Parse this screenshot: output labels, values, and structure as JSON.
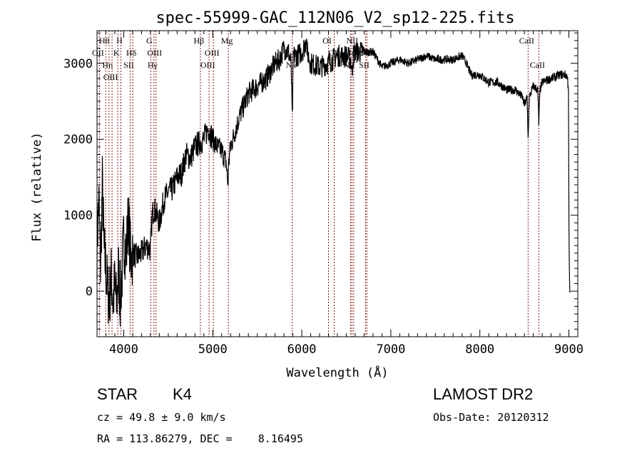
{
  "chart_data": {
    "type": "line",
    "title": "spec-55999-GAC_112N06_V2_sp12-225.fits",
    "xlabel": "Wavelength (Å)",
    "ylabel": "Flux (relative)",
    "xlim": [
      3700,
      9100
    ],
    "ylim": [
      -600,
      3430
    ],
    "x_ticks": [
      4000,
      5000,
      6000,
      7000,
      8000,
      9000
    ],
    "y_ticks": [
      0,
      1000,
      2000,
      3000
    ],
    "grid": false,
    "series": [
      {
        "name": "flux",
        "x": [
          3700,
          3720,
          3740,
          3760,
          3780,
          3800,
          3820,
          3840,
          3860,
          3880,
          3900,
          3920,
          3940,
          3960,
          3980,
          4000,
          4030,
          4050,
          4080,
          4100,
          4150,
          4200,
          4250,
          4300,
          4320,
          4340,
          4400,
          4450,
          4500,
          4550,
          4600,
          4650,
          4700,
          4750,
          4800,
          4850,
          4900,
          4950,
          5000,
          5050,
          5100,
          5150,
          5170,
          5180,
          5200,
          5250,
          5300,
          5350,
          5400,
          5450,
          5500,
          5600,
          5700,
          5750,
          5800,
          5850,
          5880,
          5893,
          5905,
          5950,
          6000,
          6040,
          6050,
          6060,
          6100,
          6200,
          6300,
          6400,
          6500,
          6550,
          6563,
          6575,
          6600,
          6700,
          6800,
          6850,
          6900,
          7000,
          7100,
          7200,
          7300,
          7400,
          7500,
          7600,
          7700,
          7800,
          7850,
          7900,
          8000,
          8100,
          8200,
          8300,
          8400,
          8480,
          8500,
          8530,
          8542,
          8555,
          8600,
          8650,
          8662,
          8675,
          8700,
          8800,
          8900,
          8970,
          8985,
          8995,
          9000,
          9005,
          9010
        ],
        "y": [
          600,
          1200,
          300,
          1400,
          500,
          300,
          0,
          -100,
          200,
          -150,
          100,
          -200,
          300,
          -100,
          200,
          700,
          500,
          1000,
          400,
          500,
          450,
          500,
          600,
          550,
          1000,
          1100,
          900,
          1200,
          1300,
          1350,
          1500,
          1550,
          1800,
          1750,
          1900,
          1950,
          2000,
          2150,
          2000,
          1900,
          1850,
          1700,
          1400,
          1700,
          1900,
          2100,
          2300,
          2450,
          2600,
          2650,
          2700,
          2800,
          3000,
          3050,
          3200,
          3150,
          3000,
          2250,
          3100,
          3100,
          3150,
          3250,
          3400,
          3150,
          3000,
          2950,
          3000,
          3100,
          3100,
          3050,
          2850,
          3100,
          3150,
          3150,
          3150,
          3050,
          2950,
          3000,
          3050,
          3000,
          3050,
          3100,
          3050,
          3050,
          3050,
          3100,
          3000,
          2850,
          2850,
          2750,
          2750,
          2650,
          2650,
          2550,
          2450,
          2550,
          2000,
          2550,
          2700,
          2650,
          2200,
          2650,
          2750,
          2800,
          2850,
          2850,
          2800,
          2650,
          1000,
          300,
          -20
        ]
      }
    ],
    "lines": [
      {
        "label": "OII",
        "wave": 3727,
        "row": 2
      },
      {
        "label": "Hθ",
        "wave": 3798,
        "row": 1
      },
      {
        "label": "Hη",
        "wave": 3835,
        "row": 3
      },
      {
        "label": "OIII",
        "wave": 3869,
        "row": 3
      },
      {
        "label": "K",
        "wave": 3934,
        "row": 2
      },
      {
        "label": "H",
        "wave": 3968,
        "row": 1
      },
      {
        "label": "SII",
        "wave": 4072,
        "row": 3
      },
      {
        "label": "Hδ",
        "wave": 4102,
        "row": 2
      },
      {
        "label": "G",
        "wave": 4304,
        "row": 1
      },
      {
        "label": "Hγ",
        "wave": 4340,
        "row": 3
      },
      {
        "label": "OIII",
        "wave": 4363,
        "row": 2
      },
      {
        "label": "Hβ",
        "wave": 4861,
        "row": 1
      },
      {
        "label": "OIII",
        "wave": 4959,
        "row": 3
      },
      {
        "label": "OIII",
        "wave": 5007,
        "row": 2
      },
      {
        "label": "Mg",
        "wave": 5175,
        "row": 1
      },
      {
        "label": "Na",
        "wave": 5893,
        "row": 3
      },
      {
        "label": "OI",
        "wave": 6300,
        "row": 1
      },
      {
        "label": "OI",
        "wave": 6364,
        "row": 2
      },
      {
        "label": "NII",
        "wave": 6548,
        "row": 3
      },
      {
        "label": "Hα",
        "wave": 6563,
        "row": 2
      },
      {
        "label": "NII",
        "wave": 6583,
        "row": 1
      },
      {
        "label": "SII",
        "wave": 6717,
        "row": 3
      },
      {
        "label": "SII",
        "wave": 6731,
        "row": 2
      },
      {
        "label": "CaII",
        "wave": 8542,
        "row": 1
      },
      {
        "label": "CaII",
        "wave": 8662,
        "row": 3
      }
    ],
    "line_color": "#8b1a1a"
  },
  "info": {
    "class_label": "STAR",
    "subclass": "K4",
    "cz": "cz = 49.8 ± 9.0 km/s",
    "coords": "RA = 113.86279, DEC =    8.16495",
    "survey": "LAMOST DR2",
    "obs_date": "Obs-Date: 20120312"
  }
}
